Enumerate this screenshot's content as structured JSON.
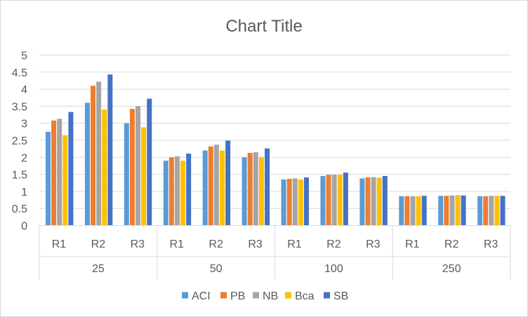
{
  "chart_data": {
    "type": "bar",
    "title": "Chart Title",
    "xlabel": "",
    "ylabel": "",
    "ylim": [
      0,
      5
    ],
    "yticks": [
      "0",
      "0.5",
      "1",
      "1.5",
      "2",
      "2.5",
      "3",
      "3.5",
      "4",
      "4.5",
      "5"
    ],
    "grid": true,
    "legend_position": "bottom",
    "groups": [
      "25",
      "50",
      "100",
      "250"
    ],
    "categories": [
      "R1",
      "R2",
      "R3",
      "R1",
      "R2",
      "R3",
      "R1",
      "R2",
      "R3",
      "R1",
      "R2",
      "R3"
    ],
    "series": [
      {
        "name": "ACI",
        "color": "#5b9bd5",
        "values": [
          2.75,
          3.6,
          3.0,
          1.9,
          2.2,
          2.0,
          1.35,
          1.45,
          1.38,
          0.86,
          0.87,
          0.86
        ]
      },
      {
        "name": "PB",
        "color": "#ed7d31",
        "values": [
          3.08,
          4.1,
          3.42,
          2.0,
          2.32,
          2.13,
          1.37,
          1.49,
          1.41,
          0.86,
          0.87,
          0.86
        ]
      },
      {
        "name": "NB",
        "color": "#a5a5a5",
        "values": [
          3.13,
          4.22,
          3.5,
          2.03,
          2.37,
          2.15,
          1.38,
          1.49,
          1.42,
          0.86,
          0.88,
          0.87
        ]
      },
      {
        "name": "Bca",
        "color": "#ffc000",
        "values": [
          2.65,
          3.4,
          2.88,
          1.9,
          2.2,
          2.0,
          1.35,
          1.49,
          1.4,
          0.86,
          0.89,
          0.87
        ]
      },
      {
        "name": "SB",
        "color": "#4472c4",
        "values": [
          3.33,
          4.43,
          3.72,
          2.11,
          2.49,
          2.26,
          1.41,
          1.55,
          1.45,
          0.87,
          0.88,
          0.87
        ]
      }
    ]
  }
}
